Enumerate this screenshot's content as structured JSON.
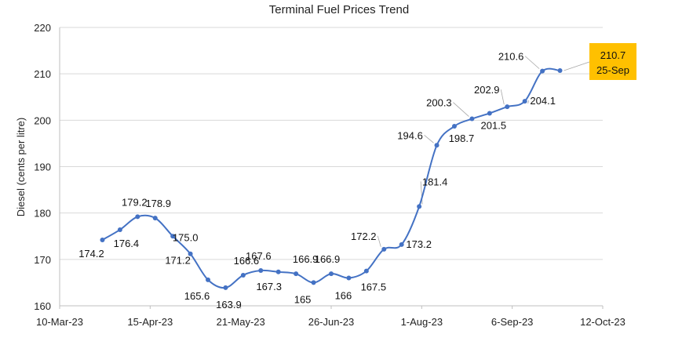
{
  "chart_data": {
    "type": "line",
    "title": "Terminal Fuel Prices Trend",
    "xlabel": "",
    "ylabel": "Diesel (cents per litre)",
    "ylim": [
      160,
      220
    ],
    "yticks": [
      160,
      170,
      180,
      190,
      200,
      210,
      220
    ],
    "xlim": [
      "2023-03-10",
      "2023-10-12"
    ],
    "xticks": [
      "2023-03-10",
      "2023-04-15",
      "2023-05-21",
      "2023-06-26",
      "2023-08-01",
      "2023-09-06",
      "2023-10-12"
    ],
    "xtick_labels": [
      "10-Mar-23",
      "15-Apr-23",
      "21-May-23",
      "26-Jun-23",
      "1-Aug-23",
      "6-Sep-23",
      "12-Oct-23"
    ],
    "grid": "horizontal",
    "legend": "none",
    "series_color": "#4472C4",
    "callout_color": "#FFC000",
    "series": [
      {
        "points": [
          {
            "date": "2023-03-27",
            "value": 174.2,
            "label": "174.2"
          },
          {
            "date": "2023-04-03",
            "value": 176.4,
            "label": "176.4"
          },
          {
            "date": "2023-04-10",
            "value": 179.2,
            "label": "179.2"
          },
          {
            "date": "2023-04-17",
            "value": 178.9,
            "label": "178.9"
          },
          {
            "date": "2023-04-24",
            "value": 175.0,
            "label": "175.0"
          },
          {
            "date": "2023-05-01",
            "value": 171.2,
            "label": "171.2"
          },
          {
            "date": "2023-05-08",
            "value": 165.6,
            "label": "165.6"
          },
          {
            "date": "2023-05-15",
            "value": 163.9,
            "label": "163.9"
          },
          {
            "date": "2023-05-22",
            "value": 166.6,
            "label": "166.6"
          },
          {
            "date": "2023-05-29",
            "value": 167.6,
            "label": "167.6"
          },
          {
            "date": "2023-06-05",
            "value": 167.3,
            "label": "167.3"
          },
          {
            "date": "2023-06-12",
            "value": 166.9,
            "label": "166.9"
          },
          {
            "date": "2023-06-19",
            "value": 165.0,
            "label": "165"
          },
          {
            "date": "2023-06-26",
            "value": 166.9,
            "label": "166.9"
          },
          {
            "date": "2023-07-03",
            "value": 166.0,
            "label": "166"
          },
          {
            "date": "2023-07-10",
            "value": 167.5,
            "label": "167.5"
          },
          {
            "date": "2023-07-17",
            "value": 172.2,
            "label": "172.2"
          },
          {
            "date": "2023-07-24",
            "value": 173.2,
            "label": "173.2"
          },
          {
            "date": "2023-07-31",
            "value": 181.4,
            "label": "181.4"
          },
          {
            "date": "2023-08-07",
            "value": 194.6,
            "label": "194.6"
          },
          {
            "date": "2023-08-14",
            "value": 198.7,
            "label": "198.7"
          },
          {
            "date": "2023-08-21",
            "value": 200.3,
            "label": "200.3"
          },
          {
            "date": "2023-08-28",
            "value": 201.5,
            "label": "201.5"
          },
          {
            "date": "2023-09-04",
            "value": 202.9,
            "label": "202.9"
          },
          {
            "date": "2023-09-11",
            "value": 204.1,
            "label": "204.1"
          },
          {
            "date": "2023-09-18",
            "value": 210.6,
            "label": "210.6"
          },
          {
            "date": "2023-09-25",
            "value": 210.7,
            "label": "210.7"
          }
        ]
      }
    ],
    "callout": {
      "value": "210.7",
      "date_label": "25-Sep"
    }
  }
}
